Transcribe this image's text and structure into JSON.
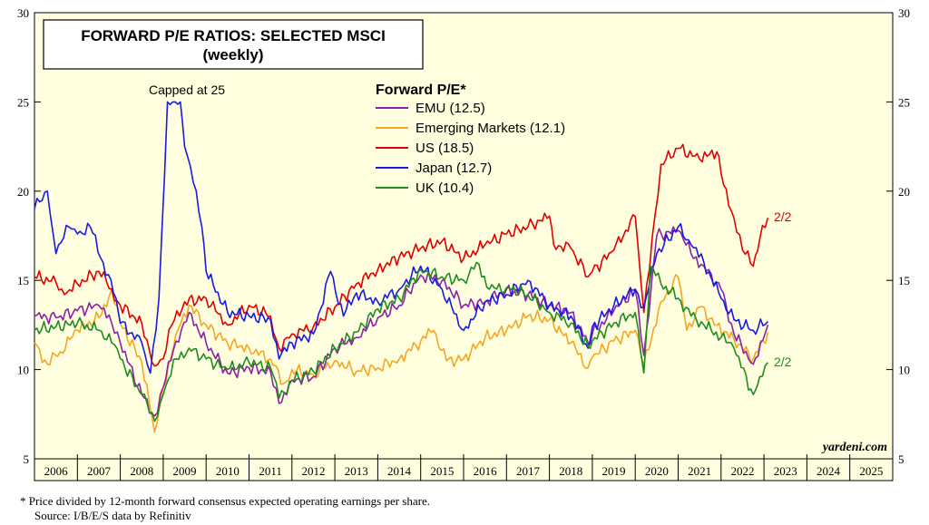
{
  "chart_data": {
    "type": "line",
    "title": "FORWARD P/E RATIOS: SELECTED MSCI",
    "subtitle": "(weekly)",
    "legend_title": "Forward P/E*",
    "legend_position": "top-center",
    "annotation_cap": "Capped at 25",
    "end_label": "2/2",
    "watermark": "yardeni.com",
    "ylim": [
      5,
      30
    ],
    "yticks": [
      5,
      10,
      15,
      20,
      25,
      30
    ],
    "xlim": [
      2006,
      2026
    ],
    "xticks": [
      "2006",
      "2007",
      "2008",
      "2009",
      "2010",
      "2011",
      "2012",
      "2013",
      "2014",
      "2015",
      "2016",
      "2017",
      "2018",
      "2019",
      "2020",
      "2021",
      "2022",
      "2023",
      "2024",
      "2025"
    ],
    "grid": false,
    "background": "#FFFFE0",
    "series": [
      {
        "name": "US (18.5)",
        "color": "#E00000",
        "points": [
          [
            2006.0,
            15.2
          ],
          [
            2006.5,
            14.9
          ],
          [
            2006.7,
            14.2
          ],
          [
            2007.0,
            14.8
          ],
          [
            2007.5,
            15.5
          ],
          [
            2007.8,
            14.5
          ],
          [
            2008.0,
            13.6
          ],
          [
            2008.5,
            12.6
          ],
          [
            2008.8,
            10.2
          ],
          [
            2009.0,
            10.6
          ],
          [
            2009.2,
            12.5
          ],
          [
            2009.5,
            13.8
          ],
          [
            2010.0,
            14.0
          ],
          [
            2010.5,
            12.5
          ],
          [
            2011.0,
            13.6
          ],
          [
            2011.5,
            13.0
          ],
          [
            2011.7,
            11.2
          ],
          [
            2012.0,
            12.0
          ],
          [
            2012.5,
            12.4
          ],
          [
            2013.0,
            13.5
          ],
          [
            2013.5,
            14.8
          ],
          [
            2014.0,
            15.6
          ],
          [
            2014.5,
            16.3
          ],
          [
            2015.0,
            16.8
          ],
          [
            2015.5,
            17.2
          ],
          [
            2016.0,
            16.2
          ],
          [
            2016.5,
            17.0
          ],
          [
            2017.0,
            17.6
          ],
          [
            2017.5,
            18.0
          ],
          [
            2018.0,
            18.6
          ],
          [
            2018.1,
            17.0
          ],
          [
            2018.5,
            16.8
          ],
          [
            2018.9,
            15.2
          ],
          [
            2019.0,
            15.5
          ],
          [
            2019.5,
            16.7
          ],
          [
            2020.0,
            18.6
          ],
          [
            2020.2,
            13.2
          ],
          [
            2020.4,
            17.5
          ],
          [
            2020.6,
            21.5
          ],
          [
            2021.0,
            22.4
          ],
          [
            2021.5,
            21.8
          ],
          [
            2021.9,
            22.2
          ],
          [
            2022.0,
            21.0
          ],
          [
            2022.3,
            18.5
          ],
          [
            2022.5,
            16.7
          ],
          [
            2022.75,
            15.8
          ],
          [
            2022.9,
            17.3
          ],
          [
            2023.09,
            18.5
          ]
        ]
      },
      {
        "name": "Emerging Markets (12.1)",
        "color": "#F5A623",
        "points": [
          [
            2006.0,
            11.5
          ],
          [
            2006.3,
            10.3
          ],
          [
            2006.6,
            11.0
          ],
          [
            2007.0,
            12.2
          ],
          [
            2007.5,
            12.9
          ],
          [
            2007.8,
            14.5
          ],
          [
            2008.0,
            12.6
          ],
          [
            2008.5,
            10.4
          ],
          [
            2008.8,
            6.5
          ],
          [
            2009.0,
            9.0
          ],
          [
            2009.3,
            12.0
          ],
          [
            2009.6,
            13.6
          ],
          [
            2010.0,
            12.5
          ],
          [
            2010.5,
            11.5
          ],
          [
            2011.0,
            11.2
          ],
          [
            2011.5,
            10.6
          ],
          [
            2011.8,
            9.2
          ],
          [
            2012.0,
            10.0
          ],
          [
            2012.5,
            9.7
          ],
          [
            2013.0,
            10.5
          ],
          [
            2013.5,
            9.9
          ],
          [
            2014.0,
            10.1
          ],
          [
            2014.5,
            10.6
          ],
          [
            2015.0,
            11.6
          ],
          [
            2015.3,
            12.2
          ],
          [
            2015.6,
            10.5
          ],
          [
            2016.0,
            10.6
          ],
          [
            2016.5,
            11.8
          ],
          [
            2017.0,
            12.2
          ],
          [
            2017.5,
            13.0
          ],
          [
            2018.0,
            12.8
          ],
          [
            2018.5,
            11.5
          ],
          [
            2018.9,
            10.1
          ],
          [
            2019.0,
            10.7
          ],
          [
            2019.5,
            11.6
          ],
          [
            2020.0,
            12.2
          ],
          [
            2020.2,
            10.2
          ],
          [
            2020.6,
            13.8
          ],
          [
            2021.0,
            15.2
          ],
          [
            2021.2,
            12.2
          ],
          [
            2021.5,
            13.5
          ],
          [
            2021.9,
            12.5
          ],
          [
            2022.3,
            11.7
          ],
          [
            2022.75,
            10.6
          ],
          [
            2023.09,
            12.1
          ]
        ]
      },
      {
        "name": "EMU (12.5)",
        "color": "#8E1FA8",
        "points": [
          [
            2006.0,
            13.0
          ],
          [
            2006.5,
            12.9
          ],
          [
            2007.0,
            13.3
          ],
          [
            2007.5,
            13.6
          ],
          [
            2007.8,
            12.6
          ],
          [
            2008.0,
            11.5
          ],
          [
            2008.5,
            8.6
          ],
          [
            2008.8,
            7.4
          ],
          [
            2009.0,
            9.0
          ],
          [
            2009.3,
            11.6
          ],
          [
            2009.6,
            13.2
          ],
          [
            2010.0,
            11.5
          ],
          [
            2010.5,
            9.8
          ],
          [
            2011.0,
            10.1
          ],
          [
            2011.5,
            9.9
          ],
          [
            2011.7,
            8.1
          ],
          [
            2012.0,
            9.4
          ],
          [
            2012.5,
            9.6
          ],
          [
            2013.0,
            11.2
          ],
          [
            2013.5,
            11.8
          ],
          [
            2014.0,
            12.9
          ],
          [
            2014.5,
            13.6
          ],
          [
            2015.0,
            15.3
          ],
          [
            2015.5,
            15.0
          ],
          [
            2016.0,
            13.6
          ],
          [
            2016.5,
            13.8
          ],
          [
            2017.0,
            14.5
          ],
          [
            2017.5,
            14.2
          ],
          [
            2018.0,
            13.6
          ],
          [
            2018.5,
            13.2
          ],
          [
            2018.9,
            11.5
          ],
          [
            2019.0,
            12.0
          ],
          [
            2019.5,
            13.3
          ],
          [
            2020.0,
            14.5
          ],
          [
            2020.2,
            10.8
          ],
          [
            2020.5,
            17.5
          ],
          [
            2021.0,
            17.8
          ],
          [
            2021.3,
            16.5
          ],
          [
            2021.6,
            15.8
          ],
          [
            2022.0,
            14.5
          ],
          [
            2022.3,
            12.0
          ],
          [
            2022.75,
            10.3
          ],
          [
            2023.09,
            12.5
          ]
        ]
      },
      {
        "name": "Japan (12.7)",
        "color": "#1A1AE0",
        "points": [
          [
            2006.0,
            19.0
          ],
          [
            2006.3,
            20.0
          ],
          [
            2006.5,
            16.5
          ],
          [
            2006.8,
            18.0
          ],
          [
            2007.0,
            17.6
          ],
          [
            2007.3,
            18.0
          ],
          [
            2007.6,
            16.0
          ],
          [
            2007.9,
            14.0
          ],
          [
            2008.0,
            12.6
          ],
          [
            2008.5,
            11.5
          ],
          [
            2008.7,
            9.8
          ],
          [
            2008.9,
            14.0
          ],
          [
            2009.1,
            25.0
          ],
          [
            2009.4,
            25.0
          ],
          [
            2009.5,
            22.5
          ],
          [
            2009.7,
            20.5
          ],
          [
            2009.9,
            18.0
          ],
          [
            2010.0,
            15.5
          ],
          [
            2010.5,
            13.2
          ],
          [
            2011.0,
            13.0
          ],
          [
            2011.5,
            12.8
          ],
          [
            2011.7,
            10.6
          ],
          [
            2012.0,
            11.5
          ],
          [
            2012.5,
            12.0
          ],
          [
            2012.9,
            15.5
          ],
          [
            2013.2,
            13.0
          ],
          [
            2013.5,
            14.3
          ],
          [
            2014.0,
            13.8
          ],
          [
            2014.5,
            14.5
          ],
          [
            2015.0,
            15.8
          ],
          [
            2015.5,
            14.5
          ],
          [
            2016.0,
            12.2
          ],
          [
            2016.5,
            13.8
          ],
          [
            2017.0,
            14.2
          ],
          [
            2017.5,
            15.0
          ],
          [
            2018.0,
            13.6
          ],
          [
            2018.5,
            13.0
          ],
          [
            2018.9,
            11.2
          ],
          [
            2019.0,
            12.4
          ],
          [
            2019.5,
            13.6
          ],
          [
            2020.0,
            14.5
          ],
          [
            2020.2,
            13.5
          ],
          [
            2020.5,
            16.5
          ],
          [
            2021.0,
            18.0
          ],
          [
            2021.3,
            17.0
          ],
          [
            2021.6,
            16.0
          ],
          [
            2022.0,
            14.0
          ],
          [
            2022.3,
            12.8
          ],
          [
            2022.75,
            12.2
          ],
          [
            2023.09,
            12.7
          ]
        ]
      },
      {
        "name": "UK (10.4)",
        "color": "#1E8C1E",
        "points": [
          [
            2006.0,
            12.2
          ],
          [
            2006.5,
            12.4
          ],
          [
            2007.0,
            12.6
          ],
          [
            2007.5,
            12.2
          ],
          [
            2007.8,
            11.5
          ],
          [
            2008.0,
            10.6
          ],
          [
            2008.5,
            8.6
          ],
          [
            2008.8,
            7.1
          ],
          [
            2009.0,
            8.6
          ],
          [
            2009.3,
            10.6
          ],
          [
            2009.6,
            11.2
          ],
          [
            2010.0,
            10.6
          ],
          [
            2010.5,
            10.0
          ],
          [
            2011.0,
            10.4
          ],
          [
            2011.5,
            10.1
          ],
          [
            2011.7,
            8.4
          ],
          [
            2012.0,
            9.4
          ],
          [
            2012.5,
            9.9
          ],
          [
            2013.0,
            11.2
          ],
          [
            2013.5,
            12.1
          ],
          [
            2014.0,
            13.4
          ],
          [
            2014.5,
            14.0
          ],
          [
            2015.0,
            15.6
          ],
          [
            2015.5,
            15.2
          ],
          [
            2016.0,
            15.0
          ],
          [
            2016.3,
            16.0
          ],
          [
            2016.6,
            14.5
          ],
          [
            2017.0,
            14.6
          ],
          [
            2017.5,
            14.2
          ],
          [
            2018.0,
            13.2
          ],
          [
            2018.5,
            12.6
          ],
          [
            2018.9,
            11.3
          ],
          [
            2019.0,
            11.6
          ],
          [
            2019.5,
            12.6
          ],
          [
            2020.0,
            13.2
          ],
          [
            2020.2,
            9.8
          ],
          [
            2020.35,
            15.8
          ],
          [
            2020.6,
            14.8
          ],
          [
            2021.0,
            14.0
          ],
          [
            2021.3,
            13.0
          ],
          [
            2021.6,
            12.5
          ],
          [
            2022.0,
            11.8
          ],
          [
            2022.3,
            11.2
          ],
          [
            2022.75,
            8.6
          ],
          [
            2022.9,
            9.6
          ],
          [
            2023.09,
            10.4
          ]
        ]
      }
    ]
  },
  "footnote_1": "*  Price divided by 12-month forward consensus expected operating earnings per share.",
  "footnote_2": "Source: I/B/E/S data by Refinitiv"
}
